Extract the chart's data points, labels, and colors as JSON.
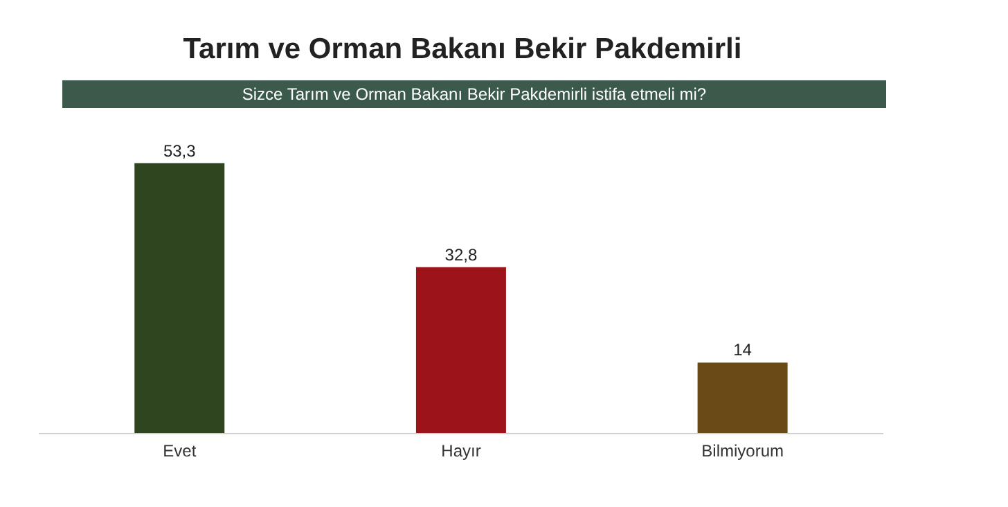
{
  "chart_data": {
    "type": "bar",
    "title": "Tarım ve Orman Bakanı Bekir Pakdemirli",
    "subtitle": "Sizce Tarım ve Orman Bakanı Bekir Pakdemirli istifa etmeli mi?",
    "categories": [
      "Evet",
      "Hayır",
      "Bilmiyorum"
    ],
    "values": [
      53.3,
      32.8,
      14
    ],
    "colors": [
      "#2f4520",
      "#9c1419",
      "#6a4b18"
    ],
    "value_labels": [
      "53,3",
      "32,8",
      "14"
    ]
  }
}
